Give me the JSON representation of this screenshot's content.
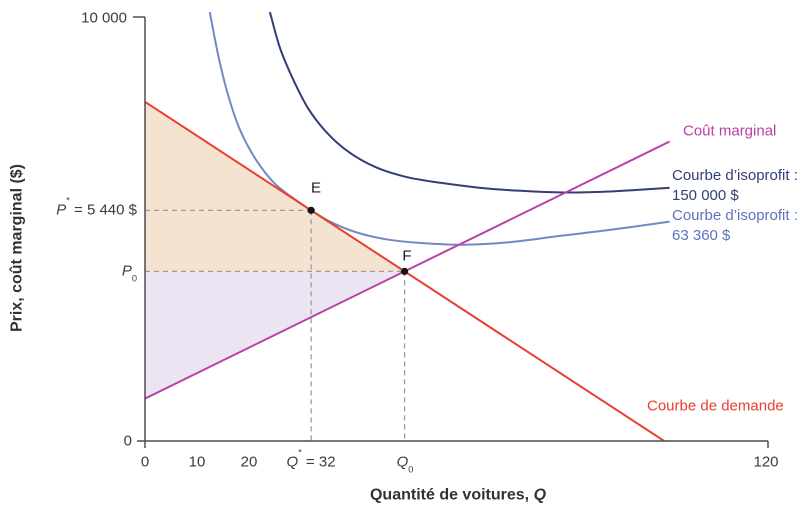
{
  "colors": {
    "axis": "#4d4d4d",
    "text": "#3c3c3c",
    "dash": "#9c9c9c",
    "point": "#141414",
    "demand": "#e8402c",
    "marginal_cost": "#bb3fa4",
    "isoprofit_high": "#333e75",
    "isoprofit_low": "#7488c4",
    "isoprofit_low_label": "#5e73b9",
    "surplus_consumer": "#f5e3d1",
    "surplus_producer": "#ebe5f3"
  },
  "labels": {
    "y_axis_title": "Prix, coût marginal ($)",
    "x_axis_title": {
      "text": "Quantité de voitures, ",
      "sym": "Q"
    },
    "y_top": "10 000",
    "y_zero": "0",
    "x_tick_0": "0",
    "x_tick_10": "10",
    "x_tick_20": "20",
    "x_tick_120": "120",
    "q_star": {
      "sym": "Q",
      "sup": "*",
      "rest": " = 32"
    },
    "q_0": {
      "sym": "Q",
      "sub": "0"
    },
    "p_star": {
      "sym": "P",
      "sup": "*",
      "rest": " = 5 440 $"
    },
    "p_0": {
      "sym": "P",
      "sub": "0"
    },
    "marginal_cost": "Coût marginal",
    "isoprofit_high_line1": "Courbe d’isoprofit :",
    "isoprofit_high_line2": "150 000 $",
    "isoprofit_low_line1": "Courbe d’isoprofit :",
    "isoprofit_low_line2": "63 360 $",
    "demand": "Courbe de demande",
    "point_e": "E",
    "point_f": "F"
  },
  "chart_data": {
    "type": "line",
    "title": "",
    "xlabel": "Quantité de voitures, Q",
    "ylabel": "Prix, coût marginal ($)",
    "xlim": [
      0,
      120
    ],
    "ylim": [
      0,
      10000
    ],
    "grid": false,
    "x_ticks": [
      {
        "q": 0,
        "label": "0"
      },
      {
        "q": 10,
        "label": "10"
      },
      {
        "q": 20,
        "label": "20"
      },
      {
        "q": 32,
        "label": "Q* = 32"
      },
      {
        "q": 50,
        "label": "Q0"
      },
      {
        "q": 120,
        "label": "120"
      }
    ],
    "y_ticks": [
      {
        "p": 0,
        "label": "0"
      },
      {
        "p": 10000,
        "label": "10 000"
      }
    ],
    "series": [
      {
        "name": "demand-curve",
        "label": "Courbe de demande",
        "color_key": "demand",
        "points": [
          [
            0,
            8000
          ],
          [
            100,
            0
          ]
        ]
      },
      {
        "name": "marginal-cost-curve",
        "label": "Coût marginal",
        "color_key": "marginal_cost",
        "points": [
          [
            0,
            1000
          ],
          [
            100.9,
            7055
          ]
        ]
      },
      {
        "name": "isoprofit-150000-curve",
        "label": "Courbe d’isoprofit : 150 000 $",
        "color_key": "isoprofit_high",
        "points": [
          [
            24.1,
            10100
          ],
          [
            26,
            9270
          ],
          [
            28.6,
            8510
          ],
          [
            31.4,
            7850
          ],
          [
            34.9,
            7290
          ],
          [
            39.2,
            6820
          ],
          [
            44.4,
            6460
          ],
          [
            50.2,
            6230
          ],
          [
            56.9,
            6090
          ],
          [
            64.6,
            5970
          ],
          [
            72.4,
            5900
          ],
          [
            80.5,
            5860
          ],
          [
            87.8,
            5875
          ],
          [
            94.5,
            5920
          ],
          [
            100.9,
            5970
          ]
        ]
      },
      {
        "name": "isoprofit-63360-curve",
        "label": "Courbe d’isoprofit : 63 360 $",
        "color_key": "isoprofit_low",
        "points": [
          [
            12.5,
            10100
          ],
          [
            14.1,
            9100
          ],
          [
            16,
            8160
          ],
          [
            18.3,
            7340
          ],
          [
            21.4,
            6630
          ],
          [
            25.1,
            6060
          ],
          [
            29.9,
            5610
          ],
          [
            32,
            5440
          ],
          [
            35.7,
            5170
          ],
          [
            40.5,
            4930
          ],
          [
            46.3,
            4760
          ],
          [
            53.1,
            4670
          ],
          [
            61.2,
            4630
          ],
          [
            70.4,
            4690
          ],
          [
            80.1,
            4840
          ],
          [
            89.7,
            4980
          ],
          [
            100.9,
            5170
          ]
        ]
      }
    ],
    "points": [
      {
        "name": "point-e",
        "label": "E",
        "q": 32,
        "p": 5440
      },
      {
        "name": "point-f",
        "label": "F",
        "q": 50,
        "p": 4000
      }
    ],
    "guides": {
      "p_star": 5440,
      "q_star": 32,
      "p_0": 4000,
      "q_0": 50
    },
    "areas": [
      {
        "name": "consumer-surplus-area",
        "color_key": "surplus_consumer",
        "polygon": [
          [
            0,
            8000
          ],
          [
            50,
            4000
          ],
          [
            0,
            4000
          ]
        ]
      },
      {
        "name": "producer-surplus-area",
        "color_key": "surplus_producer",
        "polygon": [
          [
            0,
            4000
          ],
          [
            50,
            4000
          ],
          [
            0,
            1000
          ]
        ]
      }
    ],
    "legend": "curve labels placed at right margin"
  }
}
